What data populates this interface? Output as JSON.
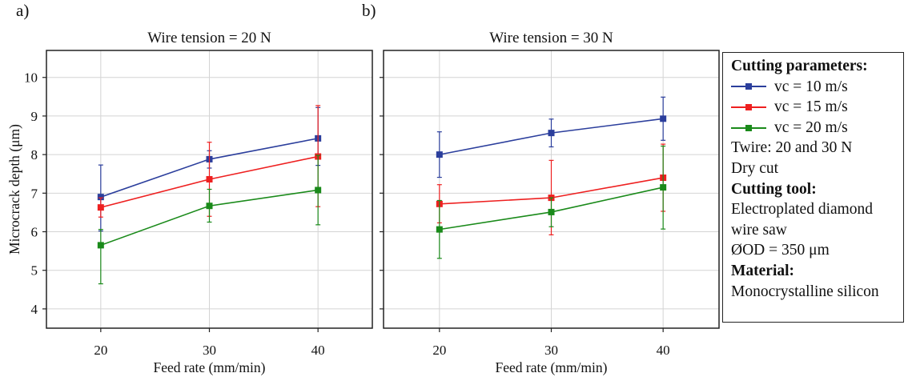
{
  "colors": {
    "v10": "#2b3e9c",
    "v15": "#ee2020",
    "v20": "#1a8a1a"
  },
  "chart_data": [
    {
      "type": "line",
      "panel_label": "a)",
      "title": "Wire tension = 20 N",
      "xlabel": "Feed rate (mm/min)",
      "ylabel": "Microcrack depth (μm)",
      "x": [
        20,
        30,
        40
      ],
      "xticks": [
        "20",
        "30",
        "40"
      ],
      "yticks": [
        "4",
        "5",
        "6",
        "7",
        "8",
        "9",
        "10"
      ],
      "xlim": [
        15,
        45
      ],
      "ylim": [
        3.5,
        10.7
      ],
      "grid": true,
      "series": [
        {
          "name": "vc = 10 m/s",
          "values": [
            6.9,
            7.88,
            8.42
          ],
          "err_low": [
            6.02,
            7.65,
            7.72
          ],
          "err_high": [
            7.73,
            8.1,
            9.22
          ]
        },
        {
          "name": "vc = 15 m/s",
          "values": [
            6.63,
            7.36,
            7.95
          ],
          "err_low": [
            6.38,
            6.4,
            6.65
          ],
          "err_high": [
            6.88,
            8.32,
            9.27
          ]
        },
        {
          "name": "vc = 20 m/s",
          "values": [
            5.65,
            6.67,
            7.08
          ],
          "err_low": [
            4.65,
            6.25,
            6.18
          ],
          "err_high": [
            6.06,
            7.1,
            7.98
          ]
        }
      ]
    },
    {
      "type": "line",
      "panel_label": "b)",
      "title": "Wire tension = 30 N",
      "xlabel": "Feed rate (mm/min)",
      "ylabel": "",
      "x": [
        20,
        30,
        40
      ],
      "xticks": [
        "20",
        "30",
        "40"
      ],
      "yticks": [],
      "xlim": [
        15,
        45
      ],
      "ylim": [
        3.5,
        10.7
      ],
      "grid": true,
      "series": [
        {
          "name": "vc = 10 m/s",
          "values": [
            8.0,
            8.56,
            8.93
          ],
          "err_low": [
            7.41,
            8.2,
            8.37
          ],
          "err_high": [
            8.59,
            8.92,
            9.49
          ]
        },
        {
          "name": "vc = 15 m/s",
          "values": [
            6.72,
            6.88,
            7.4
          ],
          "err_low": [
            6.23,
            5.92,
            6.53
          ],
          "err_high": [
            7.22,
            7.85,
            8.27
          ]
        },
        {
          "name": "vc = 20 m/s",
          "values": [
            6.06,
            6.51,
            7.15
          ],
          "err_low": [
            5.31,
            6.13,
            6.07
          ],
          "err_high": [
            6.81,
            6.88,
            8.22
          ]
        }
      ]
    }
  ],
  "legend": {
    "cutting_params_heading": "Cutting parameters:",
    "items": [
      {
        "label": "vc = 10 m/s",
        "color": "#2b3e9c"
      },
      {
        "label": "vc = 15 m/s",
        "color": "#ee2020"
      },
      {
        "label": "vc = 20 m/s",
        "color": "#1a8a1a"
      }
    ],
    "twire_line": "Twire: 20 and 30 N",
    "dry_cut": "Dry cut",
    "tool_heading": "Cutting tool:",
    "tool_line1": "Electroplated diamond",
    "tool_line2": "wire saw",
    "diameter_line": "ØOD = 350 μm",
    "material_heading": "Material:",
    "material_line": "Monocrystalline silicon"
  }
}
